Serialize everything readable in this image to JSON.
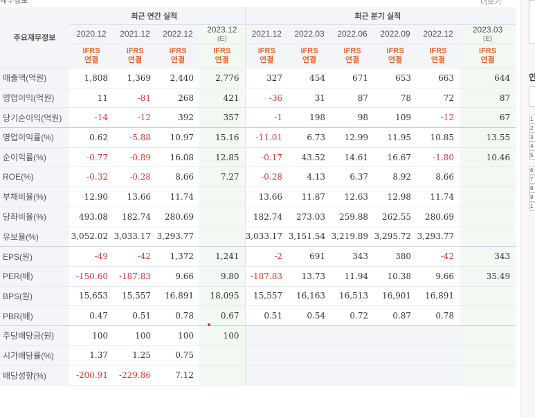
{
  "header": {
    "title": "재무정보",
    "more": "더보기"
  },
  "table": {
    "row_label_header": "주요재무정보",
    "groups": {
      "annual": "최근 연간 실적",
      "quarterly": "최근 분기 실적"
    },
    "periods": [
      {
        "label": "2020.12",
        "est": ""
      },
      {
        "label": "2021.12",
        "est": ""
      },
      {
        "label": "2022.12",
        "est": ""
      },
      {
        "label": "2023.12",
        "est": "(E)"
      },
      {
        "label": "2021.12",
        "est": ""
      },
      {
        "label": "2022.03",
        "est": ""
      },
      {
        "label": "2022.06",
        "est": ""
      },
      {
        "label": "2022.09",
        "est": ""
      },
      {
        "label": "2022.12",
        "est": ""
      },
      {
        "label": "2023.03",
        "est": "(E)"
      }
    ],
    "ifrs_top": "IFRS",
    "ifrs_bottom": "연결",
    "rows": [
      {
        "label": "매출액(억원)",
        "values": [
          "1,808",
          "1,369",
          "2,440",
          "2,776",
          "327",
          "454",
          "671",
          "653",
          "663",
          "644"
        ]
      },
      {
        "label": "영업이익(억원)",
        "values": [
          "11",
          "-81",
          "268",
          "421",
          "-36",
          "31",
          "87",
          "78",
          "72",
          "87"
        ]
      },
      {
        "label": "당기순이익(억원)",
        "values": [
          "-14",
          "-12",
          "392",
          "357",
          "-1",
          "198",
          "98",
          "109",
          "-12",
          "67"
        ]
      },
      {
        "label": "영업이익률(%)",
        "values": [
          "0.62",
          "-5.88",
          "10.97",
          "15.16",
          "-11.01",
          "6.73",
          "12.99",
          "11.95",
          "10.85",
          "13.55"
        ]
      },
      {
        "label": "순이익률(%)",
        "values": [
          "-0.77",
          "-0.89",
          "16.08",
          "12.85",
          "-0.17",
          "43.52",
          "14.61",
          "16.67",
          "-1.80",
          "10.46"
        ]
      },
      {
        "label": "ROE(%)",
        "values": [
          "-0.32",
          "-0.28",
          "8.66",
          "7.27",
          "-0.28",
          "4.13",
          "6.37",
          "8.92",
          "8.66",
          ""
        ]
      },
      {
        "label": "부채비율(%)",
        "values": [
          "12.90",
          "13.66",
          "11.74",
          "",
          "13.66",
          "11.87",
          "12.63",
          "12.98",
          "11.74",
          ""
        ]
      },
      {
        "label": "당좌비율(%)",
        "values": [
          "493.08",
          "182.74",
          "280.69",
          "",
          "182.74",
          "273.03",
          "259.88",
          "262.55",
          "280.69",
          ""
        ]
      },
      {
        "label": "유보율(%)",
        "values": [
          "3,052.02",
          "3,033.17",
          "3,293.77",
          "",
          "3,033.17",
          "3,151.54",
          "3,219.89",
          "3,295.72",
          "3,293.77",
          ""
        ]
      },
      {
        "label": "EPS(원)",
        "values": [
          "-49",
          "-42",
          "1,372",
          "1,241",
          "-2",
          "691",
          "343",
          "380",
          "-42",
          "343"
        ]
      },
      {
        "label": "PER(배)",
        "values": [
          "-150.60",
          "-187.83",
          "9.66",
          "9.80",
          "-187.83",
          "13.73",
          "11.94",
          "10.38",
          "9.66",
          "35.49"
        ]
      },
      {
        "label": "BPS(원)",
        "values": [
          "15,653",
          "15,557",
          "16,891",
          "18,095",
          "15,557",
          "16,163",
          "16,513",
          "16,901",
          "16,891",
          ""
        ]
      },
      {
        "label": "PBR(배)",
        "values": [
          "0.47",
          "0.51",
          "0.78",
          "0.67",
          "0.51",
          "0.54",
          "0.72",
          "0.87",
          "0.78",
          ""
        ]
      },
      {
        "label": "주당배당금(원)",
        "values": [
          "100",
          "100",
          "100",
          "100",
          "",
          "",
          "",
          "",
          "",
          ""
        ]
      },
      {
        "label": "시가배당률(%)",
        "values": [
          "1.37",
          "1.25",
          "0.75",
          "",
          "",
          "",
          "",
          "",
          "",
          ""
        ]
      },
      {
        "label": "배당성향(%)",
        "values": [
          "-200.91",
          "-229.86",
          "7.12",
          "",
          "",
          "",
          "",
          "",
          "",
          ""
        ]
      }
    ]
  },
  "sidebar": {
    "heading_char": "인",
    "numbers": [
      "1",
      "2",
      "3",
      "4",
      "5",
      "6",
      "7",
      "8",
      "9",
      "1"
    ]
  }
}
